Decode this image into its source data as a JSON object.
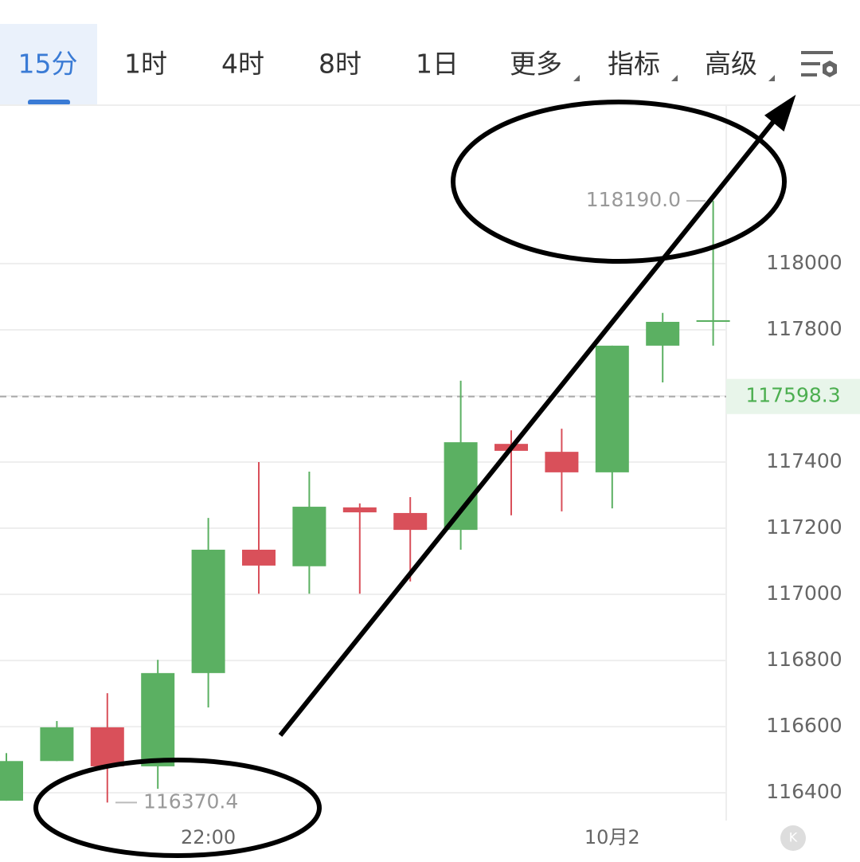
{
  "tabs": [
    "15分",
    "1时",
    "4时",
    "8时",
    "1日",
    "更多",
    "指标",
    "高级"
  ],
  "chart_data": {
    "type": "candlestick",
    "categories": [
      null,
      null,
      null,
      null,
      "22:00",
      null,
      null,
      null,
      null,
      null,
      null,
      null,
      "10月2",
      null,
      null
    ],
    "open": [
      116376,
      116496,
      116598,
      116480,
      116762,
      117135,
      117085,
      117263,
      117246,
      117195,
      117455,
      117431,
      117369,
      117752,
      117824
    ],
    "high": [
      116520,
      116617,
      116701,
      116802,
      117231,
      117400,
      117371,
      117275,
      117294,
      117646,
      117496,
      117501,
      117752,
      117851,
      118190.0
    ],
    "low": [
      116376,
      116496,
      116370.4,
      116412,
      116658,
      117002,
      117002,
      117002,
      117039,
      117135,
      117239,
      117251,
      117260,
      117641,
      117752
    ],
    "close": [
      116496,
      116598,
      116480,
      116762,
      117135,
      117087,
      117265,
      117248,
      117195,
      117460,
      117434,
      117369,
      117752,
      117824,
      117829
    ],
    "up_color": "#5bb062",
    "down_color": "#d9505a",
    "ylim": [
      116316,
      118472
    ],
    "yticks": [
      116400,
      116600,
      116800,
      117000,
      117200,
      117400,
      117600,
      117800,
      118000
    ],
    "grid": true,
    "last_price": 117598.3,
    "max_marker": {
      "value": 118190.0,
      "label": "118190.0"
    },
    "min_marker": {
      "value": 116370.4,
      "label": "116370.4"
    }
  }
}
